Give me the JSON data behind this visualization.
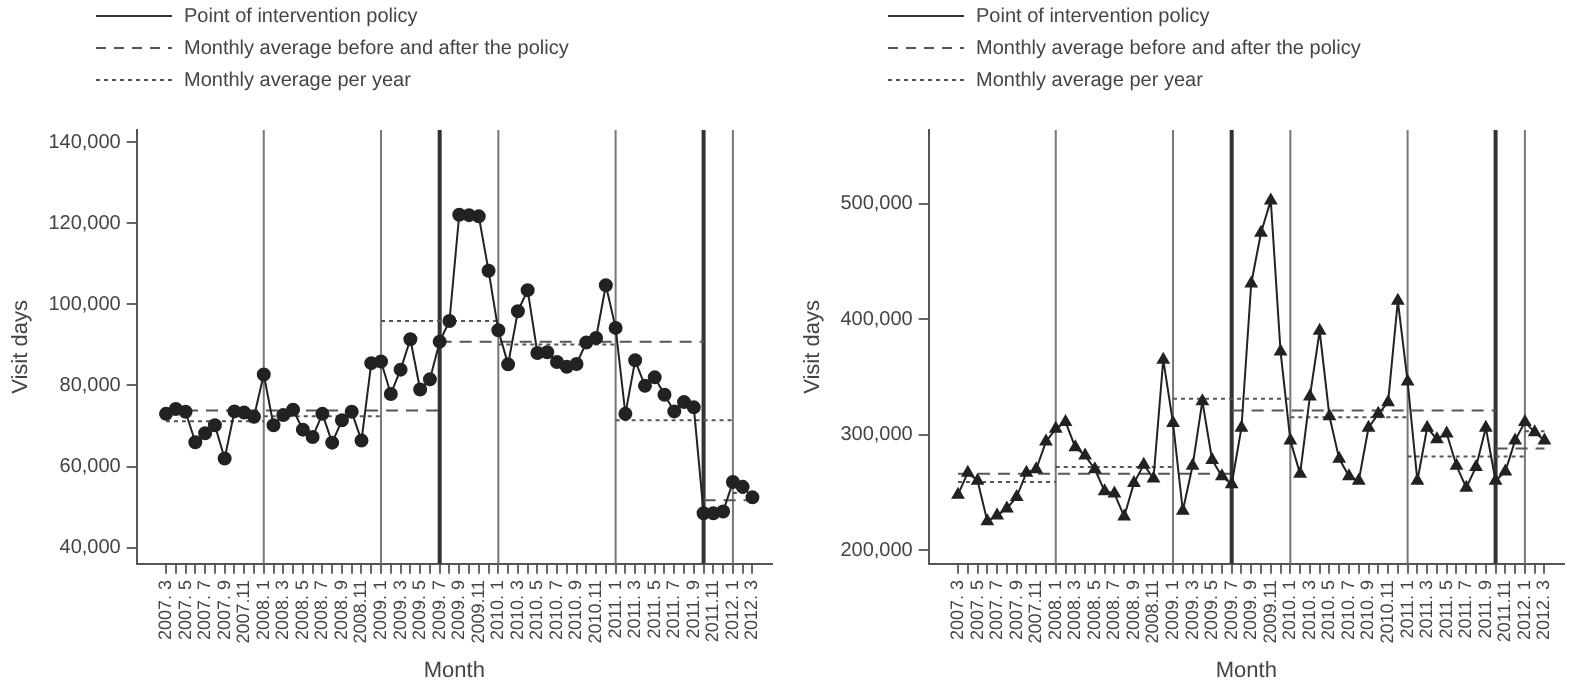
{
  "chart_data": [
    {
      "type": "line",
      "xlabel": "Month",
      "ylabel": "Visit days",
      "legend": "top left",
      "marker": "circle",
      "x": [
        "2007-03",
        "2007-04",
        "2007-05",
        "2007-06",
        "2007-07",
        "2007-08",
        "2007-09",
        "2007-10",
        "2007-11",
        "2007-12",
        "2008-01",
        "2008-02",
        "2008-03",
        "2008-04",
        "2008-05",
        "2008-06",
        "2008-07",
        "2008-08",
        "2008-09",
        "2008-10",
        "2008-11",
        "2008-12",
        "2009-01",
        "2009-02",
        "2009-03",
        "2009-04",
        "2009-05",
        "2009-06",
        "2009-07",
        "2009-08",
        "2009-09",
        "2009-10",
        "2009-11",
        "2009-12",
        "2010-01",
        "2010-02",
        "2010-03",
        "2010-04",
        "2010-05",
        "2010-06",
        "2010-07",
        "2010-08",
        "2010-09",
        "2010-10",
        "2010-11",
        "2010-12",
        "2011-01",
        "2011-02",
        "2011-03",
        "2011-04",
        "2011-05",
        "2011-06",
        "2011-07",
        "2011-08",
        "2011-09",
        "2011-10",
        "2011-11",
        "2011-12",
        "2012-01",
        "2012-02",
        "2012-03"
      ],
      "xlim": [
        "2006-12",
        "2012-05"
      ],
      "xticks": [
        {
          "value": "2007-03",
          "label": "2007. 3"
        },
        {
          "value": "2007-04",
          "label": null
        },
        {
          "value": "2007-05",
          "label": "2007. 5"
        },
        {
          "value": "2007-06",
          "label": null
        },
        {
          "value": "2007-07",
          "label": "2007. 7"
        },
        {
          "value": "2007-08",
          "label": null
        },
        {
          "value": "2007-09",
          "label": "2007. 9"
        },
        {
          "value": "2007-10",
          "label": null
        },
        {
          "value": "2007-11",
          "label": "2007.11"
        },
        {
          "value": "2007-12",
          "label": null
        },
        {
          "value": "2008-01",
          "label": "2008. 1"
        },
        {
          "value": "2008-02",
          "label": null
        },
        {
          "value": "2008-03",
          "label": "2008. 3"
        },
        {
          "value": "2008-04",
          "label": null
        },
        {
          "value": "2008-05",
          "label": "2008. 5"
        },
        {
          "value": "2008-06",
          "label": null
        },
        {
          "value": "2008-07",
          "label": "2008. 7"
        },
        {
          "value": "2008-08",
          "label": null
        },
        {
          "value": "2008-09",
          "label": "2008. 9"
        },
        {
          "value": "2008-10",
          "label": null
        },
        {
          "value": "2008-11",
          "label": "2008.11"
        },
        {
          "value": "2008-12",
          "label": null
        },
        {
          "value": "2009-01",
          "label": "2009. 1"
        },
        {
          "value": "2009-02",
          "label": null
        },
        {
          "value": "2009-03",
          "label": "2009. 3"
        },
        {
          "value": "2009-04",
          "label": null
        },
        {
          "value": "2009-05",
          "label": "2009. 5"
        },
        {
          "value": "2009-06",
          "label": null
        },
        {
          "value": "2009-07",
          "label": "2009. 7"
        },
        {
          "value": "2009-08",
          "label": null
        },
        {
          "value": "2009-09",
          "label": "2009. 9"
        },
        {
          "value": "2009-10",
          "label": null
        },
        {
          "value": "2009-11",
          "label": "2009.11"
        },
        {
          "value": "2009-12",
          "label": null
        },
        {
          "value": "2010-01",
          "label": "2010. 1"
        },
        {
          "value": "2010-02",
          "label": null
        },
        {
          "value": "2010-03",
          "label": "2010. 3"
        },
        {
          "value": "2010-04",
          "label": null
        },
        {
          "value": "2010-05",
          "label": "2010. 5"
        },
        {
          "value": "2010-06",
          "label": null
        },
        {
          "value": "2010-07",
          "label": "2010. 7"
        },
        {
          "value": "2010-08",
          "label": null
        },
        {
          "value": "2010-09",
          "label": "2010. 9"
        },
        {
          "value": "2010-10",
          "label": null
        },
        {
          "value": "2010-11",
          "label": "2010.11"
        },
        {
          "value": "2010-12",
          "label": null
        },
        {
          "value": "2011-01",
          "label": "2011. 1"
        },
        {
          "value": "2011-02",
          "label": null
        },
        {
          "value": "2011-03",
          "label": "2011. 3"
        },
        {
          "value": "2011-04",
          "label": null
        },
        {
          "value": "2011-05",
          "label": "2011. 5"
        },
        {
          "value": "2011-06",
          "label": null
        },
        {
          "value": "2011-07",
          "label": "2011. 7"
        },
        {
          "value": "2011-08",
          "label": null
        },
        {
          "value": "2011-09",
          "label": "2011. 9"
        },
        {
          "value": "2011-10",
          "label": null
        },
        {
          "value": "2011-11",
          "label": "2011.11"
        },
        {
          "value": "2011-12",
          "label": null
        },
        {
          "value": "2012-01",
          "label": "2012. 1"
        },
        {
          "value": "2012-02",
          "label": null
        },
        {
          "value": "2012-03",
          "label": "2012. 3"
        }
      ],
      "ylim": [
        36000,
        143000
      ],
      "yticks": [
        {
          "value": 40000,
          "label": "40,000"
        },
        {
          "value": 60000,
          "label": "60,000"
        },
        {
          "value": 80000,
          "label": "80,000"
        },
        {
          "value": 100000,
          "label": "100,000"
        },
        {
          "value": 120000,
          "label": "120,000"
        },
        {
          "value": 140000,
          "label": "140,000"
        }
      ],
      "ref_lines": [
        {
          "axis": "x",
          "value": "2008-01",
          "color": "#777777"
        },
        {
          "axis": "x",
          "value": "2009-01",
          "color": "#777777"
        },
        {
          "axis": "x",
          "value": "2009-07",
          "label": "Point of intervention policy",
          "color": "#333333"
        },
        {
          "axis": "x",
          "value": "2010-01",
          "color": "#777777"
        },
        {
          "axis": "x",
          "value": "2011-01",
          "color": "#777777"
        },
        {
          "axis": "x",
          "value": "2011-10",
          "color": "#333333"
        },
        {
          "axis": "x",
          "value": "2012-01",
          "color": "#777777"
        }
      ],
      "series": [
        {
          "color": "#222222",
          "line_style": "solid",
          "values": [
            73000,
            74200,
            73500,
            66000,
            68200,
            70200,
            62000,
            73600,
            73300,
            72300,
            82700,
            70200,
            72700,
            74000,
            69100,
            67300,
            73000,
            65900,
            71400,
            73500,
            66400,
            85500,
            85900,
            77900,
            83900,
            91400,
            79000,
            81500,
            90800,
            95900,
            122100,
            122000,
            121700,
            108300,
            93600,
            85200,
            98300,
            103500,
            88000,
            88200,
            85800,
            84600,
            85300,
            90600,
            91700,
            104700,
            94200,
            73000,
            86200,
            79900,
            82000,
            77700,
            73600,
            75900,
            74600,
            48500,
            48500,
            48900,
            56200,
            55000,
            52400
          ]
        },
        {
          "name": "Monthly average before and after the policy",
          "color": "#555555",
          "line_style": "dashed",
          "marker": "none",
          "x": [
            "2007-03",
            "2009-07"
          ],
          "values": [
            73800,
            73800
          ]
        },
        {
          "color": "#555555",
          "line_style": "dashed",
          "marker": "none",
          "x": [
            "2009-07",
            "2011-10"
          ],
          "values": [
            90800,
            90800
          ]
        },
        {
          "color": "#555555",
          "line_style": "dashed",
          "marker": "none",
          "x": [
            "2011-10",
            "2012-03"
          ],
          "values": [
            51700,
            51700
          ]
        },
        {
          "name": "Monthly average per year",
          "color": "#555555",
          "line_style": "dotted",
          "marker": "none",
          "x": [
            "2007-03",
            "2008-01"
          ],
          "values": [
            71200,
            71200
          ]
        },
        {
          "color": "#555555",
          "line_style": "dotted",
          "marker": "none",
          "x": [
            "2008-01",
            "2009-01"
          ],
          "values": [
            72400,
            72400
          ]
        },
        {
          "color": "#555555",
          "line_style": "dotted",
          "marker": "none",
          "x": [
            "2009-01",
            "2010-01"
          ],
          "values": [
            95900,
            95900
          ]
        },
        {
          "color": "#555555",
          "line_style": "dotted",
          "marker": "none",
          "x": [
            "2010-01",
            "2011-01"
          ],
          "values": [
            90100,
            90100
          ]
        },
        {
          "color": "#555555",
          "line_style": "dotted",
          "marker": "none",
          "x": [
            "2011-01",
            "2012-01"
          ],
          "values": [
            71400,
            71400
          ]
        },
        {
          "color": "#555555",
          "line_style": "dotted",
          "marker": "none",
          "x": [
            "2012-01",
            "2012-03"
          ],
          "values": [
            53500,
            53500
          ]
        }
      ]
    },
    {
      "type": "line",
      "xlabel": "Month",
      "ylabel": "Visit days",
      "legend": "top left",
      "marker": "triangle",
      "x": [
        "2007-03",
        "2007-04",
        "2007-05",
        "2007-06",
        "2007-07",
        "2007-08",
        "2007-09",
        "2007-10",
        "2007-11",
        "2007-12",
        "2008-01",
        "2008-02",
        "2008-03",
        "2008-04",
        "2008-05",
        "2008-06",
        "2008-07",
        "2008-08",
        "2008-09",
        "2008-10",
        "2008-11",
        "2008-12",
        "2009-01",
        "2009-02",
        "2009-03",
        "2009-04",
        "2009-05",
        "2009-06",
        "2009-07",
        "2009-08",
        "2009-09",
        "2009-10",
        "2009-11",
        "2009-12",
        "2010-01",
        "2010-02",
        "2010-03",
        "2010-04",
        "2010-05",
        "2010-06",
        "2010-07",
        "2010-08",
        "2010-09",
        "2010-10",
        "2010-11",
        "2010-12",
        "2011-01",
        "2011-02",
        "2011-03",
        "2011-04",
        "2011-05",
        "2011-06",
        "2011-07",
        "2011-08",
        "2011-09",
        "2011-10",
        "2011-11",
        "2011-12",
        "2012-01",
        "2012-02",
        "2012-03"
      ],
      "xlim": [
        "2006-12",
        "2012-05"
      ],
      "xticks": [
        {
          "value": "2007-03",
          "label": "2007. 3"
        },
        {
          "value": "2007-04",
          "label": null
        },
        {
          "value": "2007-05",
          "label": "2007. 5"
        },
        {
          "value": "2007-06",
          "label": null
        },
        {
          "value": "2007-07",
          "label": "2007. 7"
        },
        {
          "value": "2007-08",
          "label": null
        },
        {
          "value": "2007-09",
          "label": "2007. 9"
        },
        {
          "value": "2007-10",
          "label": null
        },
        {
          "value": "2007-11",
          "label": "2007.11"
        },
        {
          "value": "2007-12",
          "label": null
        },
        {
          "value": "2008-01",
          "label": "2008. 1"
        },
        {
          "value": "2008-02",
          "label": null
        },
        {
          "value": "2008-03",
          "label": "2008. 3"
        },
        {
          "value": "2008-04",
          "label": null
        },
        {
          "value": "2008-05",
          "label": "2008. 5"
        },
        {
          "value": "2008-06",
          "label": null
        },
        {
          "value": "2008-07",
          "label": "2008. 7"
        },
        {
          "value": "2008-08",
          "label": null
        },
        {
          "value": "2008-09",
          "label": "2008. 9"
        },
        {
          "value": "2008-10",
          "label": null
        },
        {
          "value": "2008-11",
          "label": "2008.11"
        },
        {
          "value": "2008-12",
          "label": null
        },
        {
          "value": "2009-01",
          "label": "2009. 1"
        },
        {
          "value": "2009-02",
          "label": null
        },
        {
          "value": "2009-03",
          "label": "2009. 3"
        },
        {
          "value": "2009-04",
          "label": null
        },
        {
          "value": "2009-05",
          "label": "2009. 5"
        },
        {
          "value": "2009-06",
          "label": null
        },
        {
          "value": "2009-07",
          "label": "2009. 7"
        },
        {
          "value": "2009-08",
          "label": null
        },
        {
          "value": "2009-09",
          "label": "2009. 9"
        },
        {
          "value": "2009-10",
          "label": null
        },
        {
          "value": "2009-11",
          "label": "2009.11"
        },
        {
          "value": "2009-12",
          "label": null
        },
        {
          "value": "2010-01",
          "label": "2010. 1"
        },
        {
          "value": "2010-02",
          "label": null
        },
        {
          "value": "2010-03",
          "label": "2010. 3"
        },
        {
          "value": "2010-04",
          "label": null
        },
        {
          "value": "2010-05",
          "label": "2010. 5"
        },
        {
          "value": "2010-06",
          "label": null
        },
        {
          "value": "2010-07",
          "label": "2010. 7"
        },
        {
          "value": "2010-08",
          "label": null
        },
        {
          "value": "2010-09",
          "label": "2010. 9"
        },
        {
          "value": "2010-10",
          "label": null
        },
        {
          "value": "2010-11",
          "label": "2010.11"
        },
        {
          "value": "2010-12",
          "label": null
        },
        {
          "value": "2011-01",
          "label": "2011. 1"
        },
        {
          "value": "2011-02",
          "label": null
        },
        {
          "value": "2011-03",
          "label": "2011. 3"
        },
        {
          "value": "2011-04",
          "label": null
        },
        {
          "value": "2011-05",
          "label": "2011. 5"
        },
        {
          "value": "2011-06",
          "label": null
        },
        {
          "value": "2011-07",
          "label": "2011. 7"
        },
        {
          "value": "2011-08",
          "label": null
        },
        {
          "value": "2011-09",
          "label": "2011. 9"
        },
        {
          "value": "2011-10",
          "label": null
        },
        {
          "value": "2011-11",
          "label": "2011.11"
        },
        {
          "value": "2011-12",
          "label": null
        },
        {
          "value": "2012-01",
          "label": "2012. 1"
        },
        {
          "value": "2012-02",
          "label": null
        },
        {
          "value": "2012-03",
          "label": "2012. 3"
        }
      ],
      "ylim": [
        188000,
        564000
      ],
      "yticks": [
        {
          "value": 200000,
          "label": "200,000"
        },
        {
          "value": 300000,
          "label": "300,000"
        },
        {
          "value": 400000,
          "label": "400,000"
        },
        {
          "value": 500000,
          "label": "500,000"
        }
      ],
      "ref_lines": [
        {
          "axis": "x",
          "value": "2008-01",
          "color": "#777777"
        },
        {
          "axis": "x",
          "value": "2009-01",
          "color": "#777777"
        },
        {
          "axis": "x",
          "value": "2009-07",
          "label": "Point of intervention policy",
          "color": "#333333"
        },
        {
          "axis": "x",
          "value": "2010-01",
          "color": "#777777"
        },
        {
          "axis": "x",
          "value": "2011-01",
          "color": "#777777"
        },
        {
          "axis": "x",
          "value": "2011-10",
          "color": "#333333"
        },
        {
          "axis": "x",
          "value": "2012-01",
          "color": "#777777"
        }
      ],
      "series": [
        {
          "color": "#222222",
          "line_style": "solid",
          "values": [
            248000,
            267000,
            260000,
            225000,
            230000,
            236000,
            246000,
            267000,
            270000,
            294000,
            305000,
            311000,
            289000,
            282000,
            270000,
            251000,
            249000,
            229000,
            258000,
            274000,
            262000,
            365000,
            310000,
            234000,
            273000,
            329000,
            278000,
            264000,
            257000,
            306000,
            431000,
            475000,
            503000,
            372000,
            295000,
            266000,
            333000,
            390000,
            316000,
            279000,
            264000,
            260000,
            306000,
            318000,
            328000,
            416000,
            346000,
            260000,
            306000,
            296000,
            301000,
            273000,
            254000,
            272000,
            306000,
            260000,
            268000,
            295000,
            311000,
            302000,
            295000
          ]
        },
        {
          "name": "Monthly average before and after the policy",
          "color": "#555555",
          "line_style": "dashed",
          "marker": "none",
          "x": [
            "2007-03",
            "2009-07"
          ],
          "values": [
            266000,
            266000
          ]
        },
        {
          "color": "#555555",
          "line_style": "dashed",
          "marker": "none",
          "x": [
            "2009-07",
            "2011-10"
          ],
          "values": [
            321000,
            321000
          ]
        },
        {
          "color": "#555555",
          "line_style": "dashed",
          "marker": "none",
          "x": [
            "2011-10",
            "2012-03"
          ],
          "values": [
            288000,
            288000
          ]
        },
        {
          "name": "Monthly average per year",
          "color": "#555555",
          "line_style": "dotted",
          "marker": "none",
          "x": [
            "2007-03",
            "2008-01"
          ],
          "values": [
            259000,
            259000
          ]
        },
        {
          "color": "#555555",
          "line_style": "dotted",
          "marker": "none",
          "x": [
            "2008-01",
            "2009-01"
          ],
          "values": [
            272000,
            272000
          ]
        },
        {
          "color": "#555555",
          "line_style": "dotted",
          "marker": "none",
          "x": [
            "2009-01",
            "2010-01"
          ],
          "values": [
            331000,
            331000
          ]
        },
        {
          "color": "#555555",
          "line_style": "dotted",
          "marker": "none",
          "x": [
            "2010-01",
            "2011-01"
          ],
          "values": [
            315000,
            315000
          ]
        },
        {
          "color": "#555555",
          "line_style": "dotted",
          "marker": "none",
          "x": [
            "2011-01",
            "2012-01"
          ],
          "values": [
            281000,
            281000
          ]
        },
        {
          "color": "#555555",
          "line_style": "dotted",
          "marker": "none",
          "x": [
            "2012-01",
            "2012-03"
          ],
          "values": [
            303000,
            303000
          ]
        }
      ]
    }
  ]
}
